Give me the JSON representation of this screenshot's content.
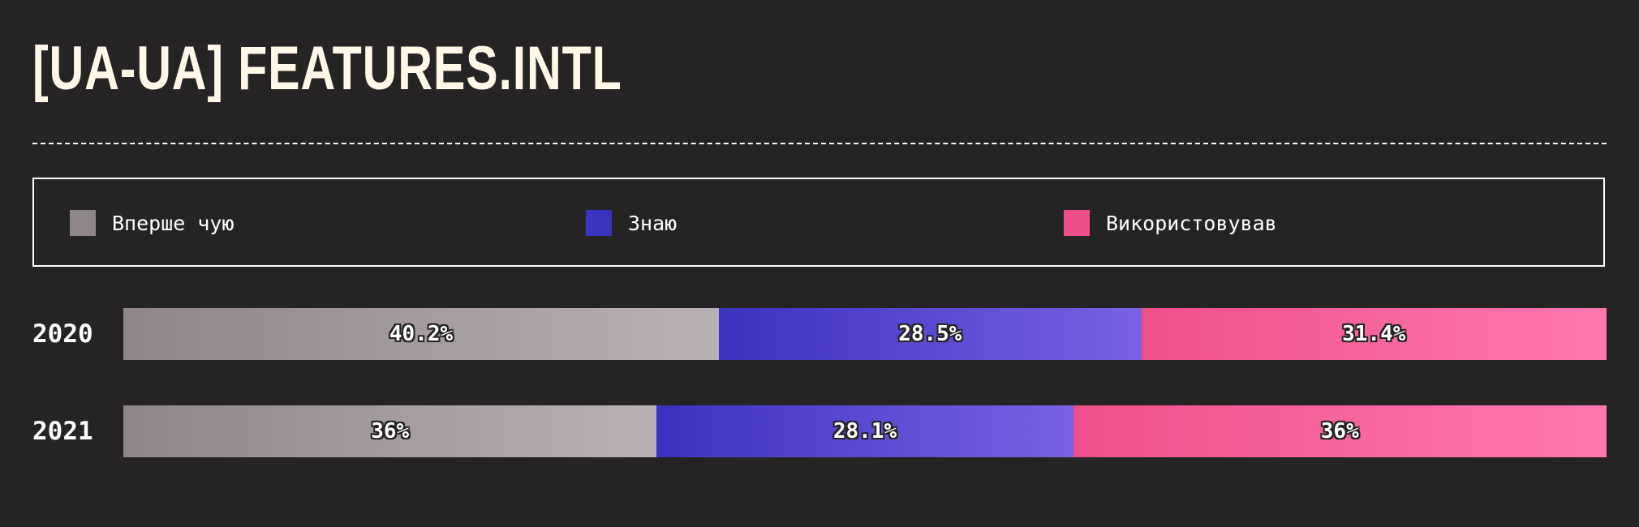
{
  "page": {
    "title": "[UA-UA] FEATURES.INTL",
    "background": "#262324"
  },
  "chart_data": {
    "type": "bar",
    "orientation": "horizontal",
    "stacked": true,
    "normalized": true,
    "unit": "%",
    "categories": [
      "2020",
      "2021"
    ],
    "legend_position": "top",
    "series": [
      {
        "name": "Вперше чую",
        "values": [
          40.2,
          36
        ],
        "labels": [
          "40.2%",
          "36%"
        ],
        "color": "#8d8589",
        "gradient": [
          "#8d8589",
          "#b9b1b4"
        ]
      },
      {
        "name": "Знаю",
        "values": [
          28.5,
          28.1
        ],
        "labels": [
          "28.5%",
          "28.1%"
        ],
        "color": "#3a33be",
        "gradient": [
          "#3a33be",
          "#7a62e3"
        ]
      },
      {
        "name": "Використовував",
        "values": [
          31.4,
          36
        ],
        "labels": [
          "31.4%",
          "36%"
        ],
        "color": "#ee4f8a",
        "gradient": [
          "#ee4f8a",
          "#ff79b1"
        ]
      }
    ]
  }
}
